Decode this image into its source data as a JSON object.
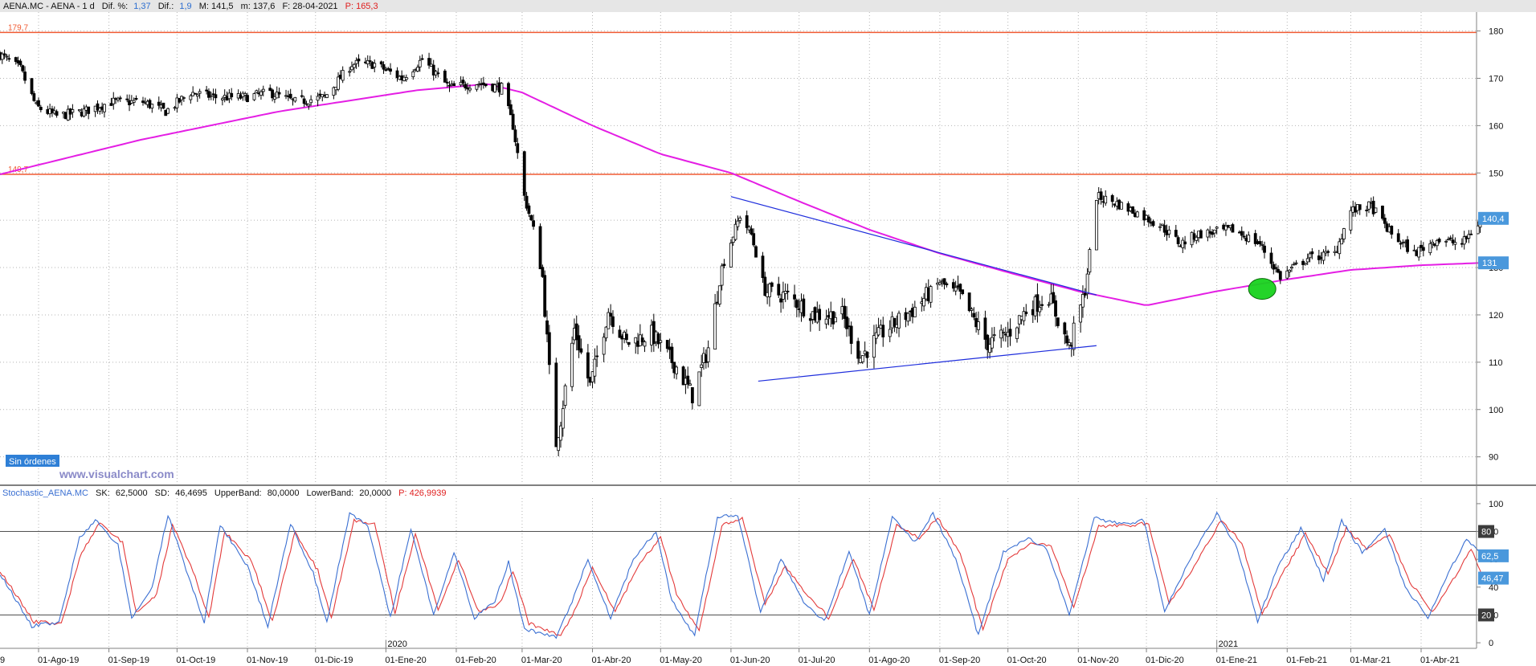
{
  "colors": {
    "price_axis_tag": "#4a98dc",
    "resistance": "#f05a32",
    "sma": "#e41ee4",
    "trendline": "#1e2ddc",
    "highlight": "#18d21e",
    "stoch_sk": "#3a6fd2",
    "stoch_sd": "#e33a3a",
    "header_bar": "#e6e6e6",
    "orders_badge": "#2e7fd6",
    "watermark": "#8a8ac8"
  },
  "header": {
    "symbol": "AENA.MC - AENA -  1 d",
    "dif_pct_label": "Dif. %:",
    "dif_pct_value": "1,37",
    "dif_label": "Dif.:",
    "dif_value": "1,9",
    "max_label": "M: 141,5",
    "min_label": "m: 137,6",
    "date_label": "F: 28-04-2021",
    "p_label": "P: 165,3"
  },
  "orders_badge": "Sin órdenes",
  "watermark": "www.visualchart.com",
  "stoch_header": {
    "name": "Stochastic_AENA.MC",
    "sk_label": "SK:",
    "sk_value": "62,5000",
    "sd_label": "SD:",
    "sd_value": "46,4695",
    "upper_label": "UpperBand:",
    "upper_value": "80,0000",
    "lower_label": "LowerBand:",
    "lower_value": "20,0000",
    "p_label": "P: 426,9939"
  },
  "chart_data": [
    {
      "type": "candlestick",
      "title": "AENA.MC - AENA - 1 d",
      "ylim": [
        84,
        184
      ],
      "y_ticks": [
        90,
        100,
        110,
        120,
        130,
        140,
        150,
        160,
        170,
        180
      ],
      "x_ticks": [
        {
          "date": "2019-08-01",
          "label": "01-Ago-19"
        },
        {
          "date": "2019-09-01",
          "label": "01-Sep-19"
        },
        {
          "date": "2019-10-01",
          "label": "01-Oct-19"
        },
        {
          "date": "2019-11-01",
          "label": "01-Nov-19"
        },
        {
          "date": "2019-12-01",
          "label": "01-Dic-19"
        },
        {
          "date": "2020-01-01",
          "label": "01-Ene-20"
        },
        {
          "date": "2020-02-01",
          "label": "01-Feb-20"
        },
        {
          "date": "2020-03-01",
          "label": "01-Mar-20"
        },
        {
          "date": "2020-04-01",
          "label": "01-Abr-20"
        },
        {
          "date": "2020-05-01",
          "label": "01-May-20"
        },
        {
          "date": "2020-06-01",
          "label": "01-Jun-20"
        },
        {
          "date": "2020-07-01",
          "label": "01-Jul-20"
        },
        {
          "date": "2020-08-01",
          "label": "01-Ago-20"
        },
        {
          "date": "2020-09-01",
          "label": "01-Sep-20"
        },
        {
          "date": "2020-10-01",
          "label": "01-Oct-20"
        },
        {
          "date": "2020-11-01",
          "label": "01-Nov-20"
        },
        {
          "date": "2020-12-01",
          "label": "01-Dic-20"
        },
        {
          "date": "2021-01-01",
          "label": "01-Ene-21"
        },
        {
          "date": "2021-02-01",
          "label": "01-Feb-21"
        },
        {
          "date": "2021-03-01",
          "label": "01-Mar-21"
        },
        {
          "date": "2021-04-01",
          "label": "01-Abr-21"
        }
      ],
      "year_markers": [
        {
          "date": "2020-01-01",
          "label": "2020"
        },
        {
          "date": "2021-01-01",
          "label": "2021"
        }
      ],
      "edge_label": "9",
      "close_path": [
        [
          "2019-07-15",
          175
        ],
        [
          "2019-07-24",
          172
        ],
        [
          "2019-07-31",
          164
        ],
        [
          "2019-08-09",
          162
        ],
        [
          "2019-08-21",
          163
        ],
        [
          "2019-09-02",
          165
        ],
        [
          "2019-09-16",
          165
        ],
        [
          "2019-09-26",
          163
        ],
        [
          "2019-10-07",
          167
        ],
        [
          "2019-10-18",
          166
        ],
        [
          "2019-10-31",
          166
        ],
        [
          "2019-11-11",
          167
        ],
        [
          "2019-11-22",
          165
        ],
        [
          "2019-12-05",
          166
        ],
        [
          "2019-12-17",
          173
        ],
        [
          "2019-12-27",
          173
        ],
        [
          "2020-01-08",
          170
        ],
        [
          "2020-01-17",
          174
        ],
        [
          "2020-01-29",
          168
        ],
        [
          "2020-02-10",
          169
        ],
        [
          "2020-02-21",
          168
        ],
        [
          "2020-02-26",
          160
        ],
        [
          "2020-03-02",
          145
        ],
        [
          "2020-03-06",
          138
        ],
        [
          "2020-03-10",
          128
        ],
        [
          "2020-03-13",
          108
        ],
        [
          "2020-03-16",
          93
        ],
        [
          "2020-03-18",
          98
        ],
        [
          "2020-03-24",
          117
        ],
        [
          "2020-03-31",
          105
        ],
        [
          "2020-04-08",
          121
        ],
        [
          "2020-04-16",
          114
        ],
        [
          "2020-04-27",
          116
        ],
        [
          "2020-05-08",
          109
        ],
        [
          "2020-05-15",
          103
        ],
        [
          "2020-05-22",
          113
        ],
        [
          "2020-05-28",
          130
        ],
        [
          "2020-06-05",
          141
        ],
        [
          "2020-06-10",
          137
        ],
        [
          "2020-06-16",
          125
        ],
        [
          "2020-06-26",
          124
        ],
        [
          "2020-07-08",
          120
        ],
        [
          "2020-07-20",
          120
        ],
        [
          "2020-07-28",
          111
        ],
        [
          "2020-08-06",
          116
        ],
        [
          "2020-08-20",
          121
        ],
        [
          "2020-09-01",
          127
        ],
        [
          "2020-09-10",
          124
        ],
        [
          "2020-09-22",
          114
        ],
        [
          "2020-10-01",
          116
        ],
        [
          "2020-10-09",
          121
        ],
        [
          "2020-10-19",
          124
        ],
        [
          "2020-10-28",
          113
        ],
        [
          "2020-11-04",
          125
        ],
        [
          "2020-11-09",
          145
        ],
        [
          "2020-11-16",
          144
        ],
        [
          "2020-11-25",
          142
        ],
        [
          "2020-12-07",
          139
        ],
        [
          "2020-12-16",
          135
        ],
        [
          "2020-12-23",
          137
        ],
        [
          "2021-01-08",
          138
        ],
        [
          "2021-01-20",
          135
        ],
        [
          "2021-01-29",
          128
        ],
        [
          "2021-02-10",
          132
        ],
        [
          "2021-02-22",
          133
        ],
        [
          "2021-03-01",
          142
        ],
        [
          "2021-03-10",
          143
        ],
        [
          "2021-03-19",
          137
        ],
        [
          "2021-03-29",
          133
        ],
        [
          "2021-04-08",
          136
        ],
        [
          "2021-04-19",
          135
        ],
        [
          "2021-04-28",
          140.4
        ]
      ],
      "resistance_lines": [
        {
          "value": 179.7,
          "label": "179,7"
        },
        {
          "value": 149.7,
          "label": "149,7"
        }
      ],
      "moving_average": [
        [
          "2019-07-15",
          149.7
        ],
        [
          "2019-09-15",
          157
        ],
        [
          "2019-11-15",
          163
        ],
        [
          "2020-01-15",
          167.5
        ],
        [
          "2020-02-15",
          168.8
        ],
        [
          "2020-03-01",
          167
        ],
        [
          "2020-04-01",
          160
        ],
        [
          "2020-05-01",
          154
        ],
        [
          "2020-06-01",
          150
        ],
        [
          "2020-07-01",
          144
        ],
        [
          "2020-08-01",
          138
        ],
        [
          "2020-09-01",
          133
        ],
        [
          "2020-10-01",
          129
        ],
        [
          "2020-11-01",
          125
        ],
        [
          "2020-12-01",
          122
        ],
        [
          "2021-01-01",
          125
        ],
        [
          "2021-02-01",
          127.5
        ],
        [
          "2021-03-01",
          129.5
        ],
        [
          "2021-04-01",
          130.5
        ],
        [
          "2021-04-28",
          131
        ]
      ],
      "trendlines": [
        {
          "from": [
            "2020-06-01",
            145
          ],
          "to": [
            "2020-11-09",
            124.2
          ]
        },
        {
          "from": [
            "2020-06-13",
            106
          ],
          "to": [
            "2020-11-09",
            113.5
          ]
        }
      ],
      "highlight_marker": {
        "date": "2021-01-21",
        "value": 125.5
      },
      "axis_tags": [
        {
          "value": 140.4,
          "label": "140,4"
        },
        {
          "value": 131,
          "label": "131"
        }
      ]
    },
    {
      "type": "line",
      "title": "Stochastic_AENA.MC",
      "ylim": [
        -4,
        104
      ],
      "y_ticks": [
        0,
        20,
        40,
        60,
        80,
        100
      ],
      "bands": [
        80,
        20
      ],
      "sk_path": [
        [
          "2019-07-15",
          50
        ],
        [
          "2019-07-29",
          12
        ],
        [
          "2019-08-10",
          15
        ],
        [
          "2019-08-19",
          75
        ],
        [
          "2019-08-26",
          88
        ],
        [
          "2019-09-05",
          70
        ],
        [
          "2019-09-11",
          18
        ],
        [
          "2019-09-20",
          40
        ],
        [
          "2019-09-27",
          92
        ],
        [
          "2019-10-06",
          48
        ],
        [
          "2019-10-13",
          15
        ],
        [
          "2019-10-20",
          85
        ],
        [
          "2019-11-01",
          55
        ],
        [
          "2019-11-10",
          12
        ],
        [
          "2019-11-20",
          86
        ],
        [
          "2019-11-30",
          50
        ],
        [
          "2019-12-06",
          15
        ],
        [
          "2019-12-16",
          93
        ],
        [
          "2019-12-24",
          85
        ],
        [
          "2020-01-03",
          18
        ],
        [
          "2020-01-12",
          82
        ],
        [
          "2020-01-22",
          20
        ],
        [
          "2020-01-31",
          65
        ],
        [
          "2020-02-09",
          18
        ],
        [
          "2020-02-18",
          30
        ],
        [
          "2020-02-24",
          58
        ],
        [
          "2020-03-02",
          10
        ],
        [
          "2020-03-16",
          4
        ],
        [
          "2020-03-23",
          30
        ],
        [
          "2020-03-30",
          60
        ],
        [
          "2020-04-09",
          18
        ],
        [
          "2020-04-19",
          60
        ],
        [
          "2020-04-29",
          80
        ],
        [
          "2020-05-06",
          30
        ],
        [
          "2020-05-16",
          5
        ],
        [
          "2020-05-26",
          90
        ],
        [
          "2020-06-04",
          92
        ],
        [
          "2020-06-14",
          22
        ],
        [
          "2020-06-23",
          60
        ],
        [
          "2020-07-03",
          30
        ],
        [
          "2020-07-12",
          15
        ],
        [
          "2020-07-23",
          65
        ],
        [
          "2020-08-01",
          20
        ],
        [
          "2020-08-11",
          90
        ],
        [
          "2020-08-21",
          72
        ],
        [
          "2020-08-29",
          93
        ],
        [
          "2020-09-08",
          60
        ],
        [
          "2020-09-18",
          5
        ],
        [
          "2020-09-29",
          65
        ],
        [
          "2020-10-10",
          75
        ],
        [
          "2020-10-18",
          68
        ],
        [
          "2020-10-28",
          20
        ],
        [
          "2020-11-08",
          90
        ],
        [
          "2020-11-20",
          85
        ],
        [
          "2020-11-30",
          88
        ],
        [
          "2020-12-09",
          22
        ],
        [
          "2020-12-20",
          60
        ],
        [
          "2021-01-01",
          93
        ],
        [
          "2021-01-10",
          68
        ],
        [
          "2021-01-19",
          15
        ],
        [
          "2021-01-28",
          55
        ],
        [
          "2021-02-07",
          82
        ],
        [
          "2021-02-17",
          45
        ],
        [
          "2021-02-25",
          88
        ],
        [
          "2021-03-06",
          65
        ],
        [
          "2021-03-16",
          82
        ],
        [
          "2021-03-25",
          40
        ],
        [
          "2021-04-04",
          18
        ],
        [
          "2021-04-13",
          50
        ],
        [
          "2021-04-21",
          75
        ],
        [
          "2021-04-28",
          62.5
        ]
      ],
      "sd_path": [
        [
          "2019-07-15",
          52
        ],
        [
          "2019-07-30",
          15
        ],
        [
          "2019-08-11",
          14
        ],
        [
          "2019-08-20",
          65
        ],
        [
          "2019-08-28",
          86
        ],
        [
          "2019-09-07",
          72
        ],
        [
          "2019-09-13",
          22
        ],
        [
          "2019-09-22",
          35
        ],
        [
          "2019-09-29",
          85
        ],
        [
          "2019-10-08",
          52
        ],
        [
          "2019-10-15",
          18
        ],
        [
          "2019-10-22",
          80
        ],
        [
          "2019-11-03",
          58
        ],
        [
          "2019-11-12",
          15
        ],
        [
          "2019-11-22",
          80
        ],
        [
          "2019-12-02",
          52
        ],
        [
          "2019-12-08",
          18
        ],
        [
          "2019-12-18",
          88
        ],
        [
          "2019-12-27",
          86
        ],
        [
          "2020-01-05",
          22
        ],
        [
          "2020-01-14",
          78
        ],
        [
          "2020-01-24",
          24
        ],
        [
          "2020-02-02",
          60
        ],
        [
          "2020-02-11",
          22
        ],
        [
          "2020-02-20",
          28
        ],
        [
          "2020-02-26",
          52
        ],
        [
          "2020-03-04",
          14
        ],
        [
          "2020-03-18",
          5
        ],
        [
          "2020-03-25",
          26
        ],
        [
          "2020-04-01",
          55
        ],
        [
          "2020-04-11",
          22
        ],
        [
          "2020-04-21",
          55
        ],
        [
          "2020-05-01",
          76
        ],
        [
          "2020-05-08",
          35
        ],
        [
          "2020-05-18",
          8
        ],
        [
          "2020-05-28",
          84
        ],
        [
          "2020-06-06",
          90
        ],
        [
          "2020-06-16",
          28
        ],
        [
          "2020-06-25",
          55
        ],
        [
          "2020-07-05",
          34
        ],
        [
          "2020-07-14",
          18
        ],
        [
          "2020-07-25",
          60
        ],
        [
          "2020-08-03",
          24
        ],
        [
          "2020-08-13",
          84
        ],
        [
          "2020-08-23",
          75
        ],
        [
          "2020-08-31",
          90
        ],
        [
          "2020-09-10",
          64
        ],
        [
          "2020-09-20",
          9
        ],
        [
          "2020-10-01",
          60
        ],
        [
          "2020-10-12",
          72
        ],
        [
          "2020-10-20",
          70
        ],
        [
          "2020-10-30",
          25
        ],
        [
          "2020-11-10",
          84
        ],
        [
          "2020-11-22",
          84
        ],
        [
          "2020-12-02",
          86
        ],
        [
          "2020-12-11",
          28
        ],
        [
          "2020-12-22",
          55
        ],
        [
          "2021-01-03",
          88
        ],
        [
          "2021-01-12",
          72
        ],
        [
          "2021-01-21",
          20
        ],
        [
          "2021-01-30",
          50
        ],
        [
          "2021-02-09",
          78
        ],
        [
          "2021-02-19",
          50
        ],
        [
          "2021-02-27",
          82
        ],
        [
          "2021-03-08",
          68
        ],
        [
          "2021-03-18",
          78
        ],
        [
          "2021-03-27",
          44
        ],
        [
          "2021-04-06",
          22
        ],
        [
          "2021-04-15",
          45
        ],
        [
          "2021-04-23",
          68
        ],
        [
          "2021-04-28",
          46.47
        ]
      ],
      "axis_tags": [
        {
          "value": 80,
          "label": "80"
        },
        {
          "value": 62.5,
          "label": "62,5"
        },
        {
          "value": 46.47,
          "label": "46,47"
        },
        {
          "value": 20,
          "label": "20"
        }
      ]
    }
  ]
}
